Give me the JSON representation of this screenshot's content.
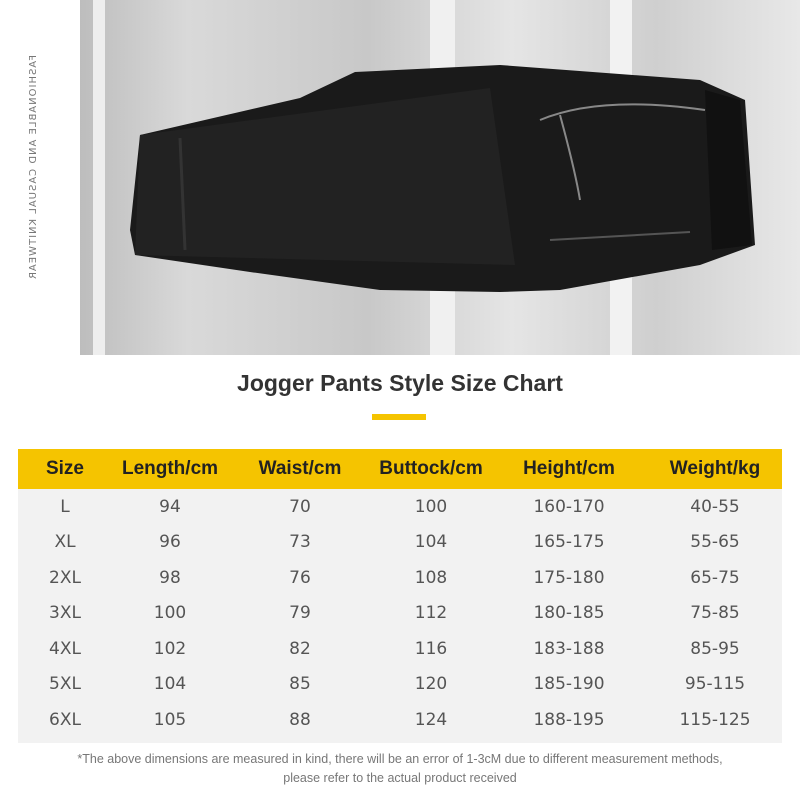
{
  "photo": {
    "side_text": "FASHIONABLE AND CASUAL KNITWEAR"
  },
  "title": "Jogger Pants Style Size Chart",
  "accent": "#f5c400",
  "table": {
    "headers": [
      "Size",
      "Length/cm",
      "Waist/cm",
      "Buttock/cm",
      "Height/cm",
      "Weight/kg"
    ],
    "rows": [
      [
        "L",
        "94",
        "70",
        "100",
        "160-170",
        "40-55"
      ],
      [
        "XL",
        "96",
        "73",
        "104",
        "165-175",
        "55-65"
      ],
      [
        "2XL",
        "98",
        "76",
        "108",
        "175-180",
        "65-75"
      ],
      [
        "3XL",
        "100",
        "79",
        "112",
        "180-185",
        "75-85"
      ],
      [
        "4XL",
        "102",
        "82",
        "116",
        "183-188",
        "85-95"
      ],
      [
        "5XL",
        "104",
        "85",
        "120",
        "185-190",
        "95-115"
      ],
      [
        "6XL",
        "105",
        "88",
        "124",
        "188-195",
        "115-125"
      ]
    ]
  },
  "note": "*The above dimensions are measured in kind, there will be an error of 1-3cM due to different measurement methods, please refer to the actual product received"
}
